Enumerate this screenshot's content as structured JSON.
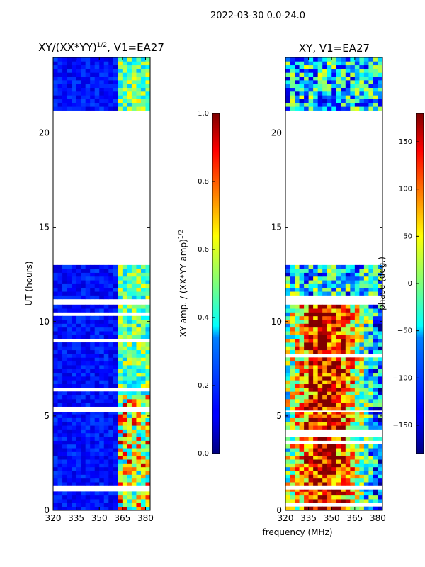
{
  "figure": {
    "suptitle": "2022-03-30 0.0-24.0",
    "shared_xlabel": "frequency (MHz)"
  },
  "chart_data": [
    {
      "type": "heatmap",
      "title": "XY/(XX*YY)",
      "title_sup": "1/2",
      "title_suffix": ", V1=EA27",
      "ylabel": "UT (hours)",
      "xlim": [
        320,
        383
      ],
      "ylim": [
        0,
        24
      ],
      "xticks": [
        320,
        335,
        350,
        365,
        380
      ],
      "yticks": [
        0,
        5,
        10,
        15,
        20
      ],
      "colorbar": {
        "label": "XY amp. / (XX*YY amp)",
        "label_sup": "1/2",
        "range": [
          0.0,
          1.0
        ],
        "ticks": [
          "0.0",
          "0.2",
          "0.4",
          "0.6",
          "0.8",
          "1.0"
        ],
        "colormap": "jet"
      },
      "data_ranges_hours": [
        [
          0.0,
          1.1
        ],
        [
          1.3,
          5.2
        ],
        [
          5.3,
          10.9
        ],
        [
          11.2,
          13.0
        ],
        [
          21.2,
          24.0
        ]
      ]
    },
    {
      "type": "heatmap",
      "title": "XY, V1=EA27",
      "ylabel": "",
      "xlim": [
        320,
        383
      ],
      "ylim": [
        0,
        24
      ],
      "xticks": [
        320,
        335,
        350,
        365,
        380
      ],
      "yticks": [
        0,
        5,
        10,
        15,
        20
      ],
      "colorbar": {
        "label": "phase (deg.)",
        "range": [
          -180,
          180
        ],
        "ticks": [
          "−150",
          "−100",
          "−50",
          "0",
          "50",
          "100",
          "150"
        ],
        "colormap": "jet"
      },
      "data_ranges_hours": [
        [
          0.0,
          1.1
        ],
        [
          1.3,
          5.2
        ],
        [
          5.3,
          10.9
        ],
        [
          11.2,
          13.0
        ],
        [
          21.2,
          24.0
        ]
      ]
    }
  ]
}
